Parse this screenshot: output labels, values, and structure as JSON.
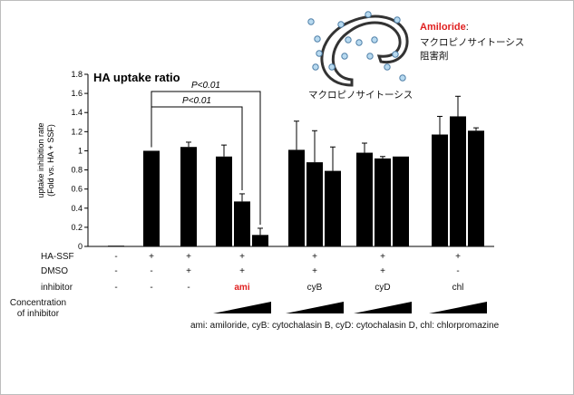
{
  "chart_data": {
    "type": "bar",
    "title": "HA uptake ratio",
    "ylabel": "uptake inhibition rate\n(Fold vs. HA + SSF)",
    "ylim": [
      0,
      1.8
    ],
    "yticks": [
      0,
      0.2,
      0.4,
      0.6,
      0.8,
      1,
      1.2,
      1.4,
      1.6,
      1.8
    ],
    "ytick_labels": [
      "0",
      "0.2",
      "0.4",
      "0.6",
      "0.8",
      "1",
      "1.2",
      "1.4",
      "1.6",
      "1.8"
    ],
    "groups": [
      {
        "bars": [
          {
            "value": 0.0,
            "error": 0.0
          }
        ]
      },
      {
        "bars": [
          {
            "value": 1.0,
            "error": 0.0
          }
        ]
      },
      {
        "bars": [
          {
            "value": 1.04,
            "error": 0.05
          }
        ]
      },
      {
        "bars": [
          {
            "value": 0.94,
            "error": 0.12
          },
          {
            "value": 0.47,
            "error": 0.08
          },
          {
            "value": 0.12,
            "error": 0.07
          }
        ]
      },
      {
        "bars": [
          {
            "value": 1.01,
            "error": 0.3
          },
          {
            "value": 0.88,
            "error": 0.33
          },
          {
            "value": 0.79,
            "error": 0.25
          }
        ]
      },
      {
        "bars": [
          {
            "value": 0.98,
            "error": 0.1
          },
          {
            "value": 0.92,
            "error": 0.02
          },
          {
            "value": 0.94,
            "error": 0.0
          }
        ]
      },
      {
        "bars": [
          {
            "value": 1.17,
            "error": 0.19
          },
          {
            "value": 1.36,
            "error": 0.21
          },
          {
            "value": 1.21,
            "error": 0.03
          }
        ]
      }
    ],
    "significance": [
      {
        "label": "P<0.01",
        "from_group": 1,
        "to_group": 3,
        "to_bar": 1
      },
      {
        "label": "P<0.01",
        "from_group": 1,
        "to_group": 3,
        "to_bar": 2
      }
    ],
    "table": {
      "rows": [
        {
          "label": "HA-SSF",
          "cells": [
            "-",
            "+",
            "+",
            "+",
            "+",
            "+",
            "+"
          ]
        },
        {
          "label": "DMSO",
          "cells": [
            "-",
            "-",
            "+",
            "+",
            "+",
            "+",
            "-"
          ]
        },
        {
          "label": "inhibitor",
          "cells": [
            "-",
            "-",
            "-",
            "ami",
            "cyB",
            "cyD",
            "chl"
          ]
        }
      ],
      "concentration_label": "Concentration\nof inhibitor",
      "concentration_wedges": [
        3,
        4,
        5,
        6
      ]
    },
    "highlight_color": "#e02020",
    "footnote": "ami: amiloride, cyB: cytochalasin B, cyD: cytochalasin D, chl: chlorpromazine"
  },
  "diagram": {
    "drug_name": "Amiloride",
    "drug_name_suffix": ":",
    "drug_desc_line1": "マクロピノサイトーシス",
    "drug_desc_line2": "阻害剤",
    "caption": "マクロピノサイトーシス",
    "particle_color": "#b8daf0",
    "highlight_color": "#e02020"
  }
}
